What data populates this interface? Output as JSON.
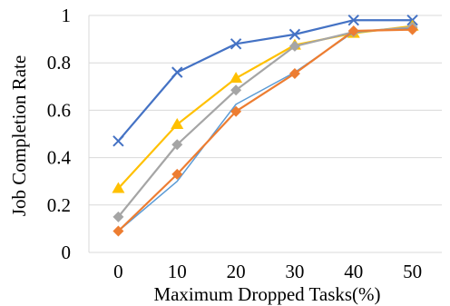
{
  "chart_data": {
    "type": "line",
    "xlabel": "Maximum Dropped Tasks(%)",
    "ylabel": "Job Completion Rate",
    "x": [
      0,
      10,
      20,
      30,
      40,
      50
    ],
    "x_tick_labels": [
      "0",
      "10",
      "20",
      "30",
      "40",
      "50"
    ],
    "y_tick_labels": [
      "0",
      "0.2",
      "0.4",
      "0.6",
      "0.8",
      "1"
    ],
    "ylim": [
      0,
      1
    ],
    "grid": "horizontal",
    "legend": "none",
    "series": [
      {
        "values": [
          0.47,
          0.76,
          0.88,
          0.92,
          0.98,
          0.98
        ],
        "color": "#4472C4",
        "marker": "x"
      },
      {
        "values": [
          0.27,
          0.54,
          0.735,
          0.875,
          0.925,
          0.955
        ],
        "color": "#FFC000",
        "marker": "triangle"
      },
      {
        "values": [
          0.15,
          0.455,
          0.685,
          0.87,
          0.93,
          0.95
        ],
        "color": "#A5A5A5",
        "marker": "diamond"
      },
      {
        "values": [
          0.09,
          0.3,
          0.625,
          0.76,
          0.93,
          0.945
        ],
        "color": "#5B9BD5",
        "marker": "none"
      },
      {
        "values": [
          0.09,
          0.33,
          0.595,
          0.755,
          0.935,
          0.94
        ],
        "color": "#ED7D31",
        "marker": "diamond"
      }
    ]
  }
}
